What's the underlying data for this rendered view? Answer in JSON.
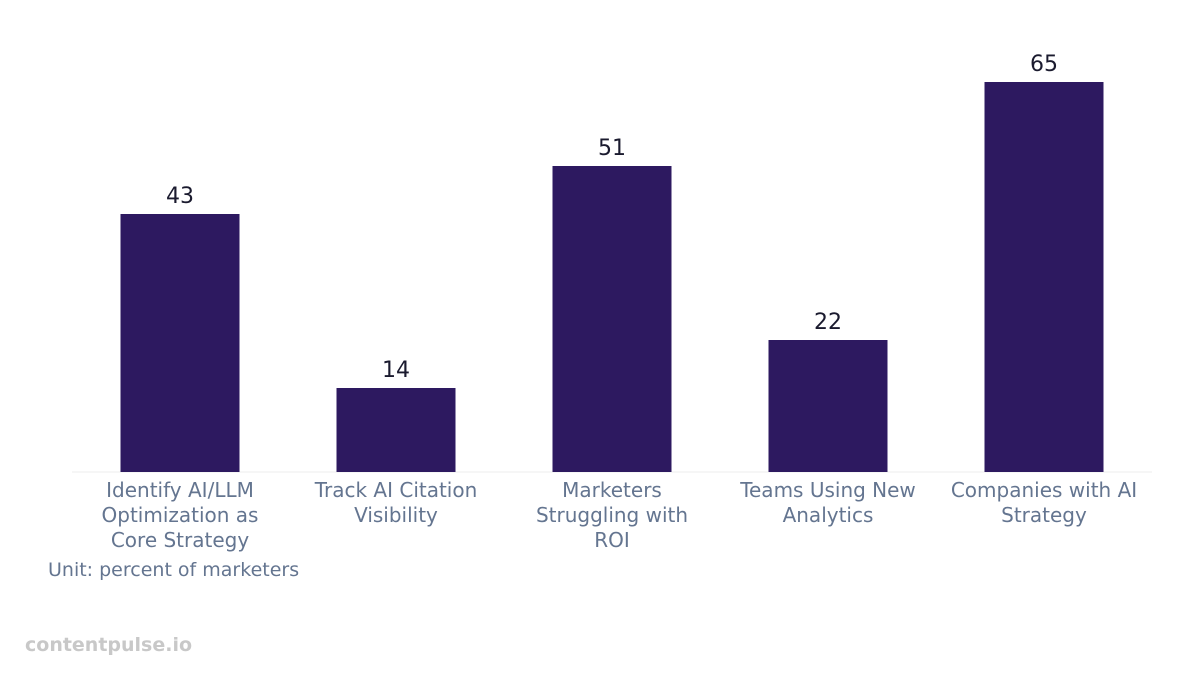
{
  "chart_data": {
    "type": "bar",
    "categories": [
      [
        "Identify AI/LLM",
        "Optimization as",
        "Core Strategy"
      ],
      [
        "Track AI Citation",
        "Visibility"
      ],
      [
        "Marketers",
        "Struggling with",
        "ROI"
      ],
      [
        "Teams Using New",
        "Analytics"
      ],
      [
        "Companies with AI",
        "Strategy"
      ]
    ],
    "values": [
      43,
      14,
      51,
      22,
      65
    ],
    "data_labels": [
      "43",
      "14",
      "51",
      "22",
      "65"
    ],
    "ylim": [
      0,
      70
    ],
    "bar_color": "#2d1960",
    "grid": false,
    "legend": "none"
  },
  "note": {
    "unit_text": "Unit: percent of marketers"
  },
  "watermark": {
    "text": "contentpulse.io"
  },
  "colors": {
    "bar": "#2d1960",
    "tick_text": "#647590",
    "value_text": "#1a1a2e",
    "watermark": "#c8c8c8",
    "baseline": "#eeeeee"
  }
}
